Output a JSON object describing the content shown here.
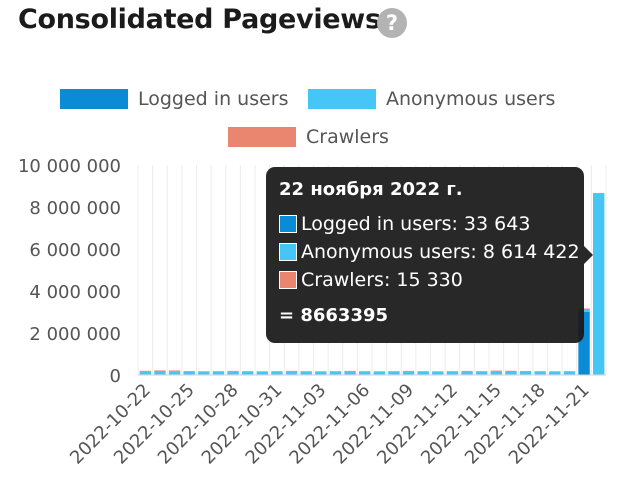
{
  "header": {
    "title": "Consolidated Pageviews",
    "help_icon": "?"
  },
  "colors": {
    "logged": "#0a8bd6",
    "anonymous": "#46c6f7",
    "crawlers": "#ea8670"
  },
  "legend": [
    {
      "label": "Logged in users",
      "color": "#0a8bd6"
    },
    {
      "label": "Anonymous users",
      "color": "#46c6f7"
    },
    {
      "label": "Crawlers",
      "color": "#ea8670"
    }
  ],
  "tooltip": {
    "date": "22 ноября 2022 г.",
    "rows": [
      {
        "text": "Logged in users: 33 643",
        "color": "#0a8bd6"
      },
      {
        "text": "Anonymous users: 8 614 422",
        "color": "#46c6f7"
      },
      {
        "text": "Crawlers: 15 330",
        "color": "#ea8670"
      }
    ],
    "total": "= 8663395"
  },
  "chart_data": {
    "type": "bar",
    "stacked": true,
    "categories": [
      "2022-10-22",
      "2022-10-23",
      "2022-10-24",
      "2022-10-25",
      "2022-10-26",
      "2022-10-27",
      "2022-10-28",
      "2022-10-29",
      "2022-10-30",
      "2022-10-31",
      "2022-11-01",
      "2022-11-02",
      "2022-11-03",
      "2022-11-04",
      "2022-11-05",
      "2022-11-06",
      "2022-11-07",
      "2022-11-08",
      "2022-11-09",
      "2022-11-10",
      "2022-11-11",
      "2022-11-12",
      "2022-11-13",
      "2022-11-14",
      "2022-11-15",
      "2022-11-16",
      "2022-11-17",
      "2022-11-18",
      "2022-11-19",
      "2022-11-20",
      "2022-11-21",
      "2022-11-22"
    ],
    "tick_labels": [
      "2022-10-22",
      "2022-10-25",
      "2022-10-28",
      "2022-10-31",
      "2022-11-03",
      "2022-11-06",
      "2022-11-09",
      "2022-11-12",
      "2022-11-15",
      "2022-11-18",
      "2022-11-21"
    ],
    "series": [
      {
        "name": "Logged in users",
        "color": "#0a8bd6",
        "values": [
          30000,
          32000,
          31000,
          30000,
          29000,
          30000,
          31000,
          30000,
          29000,
          30000,
          31000,
          30000,
          29000,
          30000,
          31000,
          30000,
          29000,
          30000,
          31000,
          30000,
          29000,
          30000,
          31000,
          30000,
          29000,
          30000,
          31000,
          30000,
          29000,
          30000,
          3000000,
          33643
        ]
      },
      {
        "name": "Anonymous users",
        "color": "#46c6f7",
        "values": [
          130000,
          135000,
          140000,
          125000,
          120000,
          125000,
          130000,
          125000,
          120000,
          125000,
          130000,
          125000,
          120000,
          125000,
          130000,
          125000,
          120000,
          125000,
          130000,
          125000,
          120000,
          125000,
          130000,
          125000,
          140000,
          135000,
          130000,
          125000,
          120000,
          125000,
          150000,
          8614422
        ]
      },
      {
        "name": "Crawlers",
        "color": "#ea8670",
        "values": [
          40000,
          50000,
          45000,
          35000,
          30000,
          30000,
          35000,
          30000,
          30000,
          30000,
          35000,
          30000,
          30000,
          30000,
          35000,
          30000,
          30000,
          30000,
          35000,
          30000,
          30000,
          30000,
          35000,
          30000,
          40000,
          35000,
          30000,
          30000,
          30000,
          30000,
          20000,
          15330
        ]
      }
    ],
    "yticks": [
      "10 000 000",
      "8 000 000",
      "6 000 000",
      "4 000 000",
      "2 000 000",
      "0"
    ],
    "ylim": [
      0,
      10000000
    ],
    "grid": "vertical",
    "legend_position": "top"
  }
}
